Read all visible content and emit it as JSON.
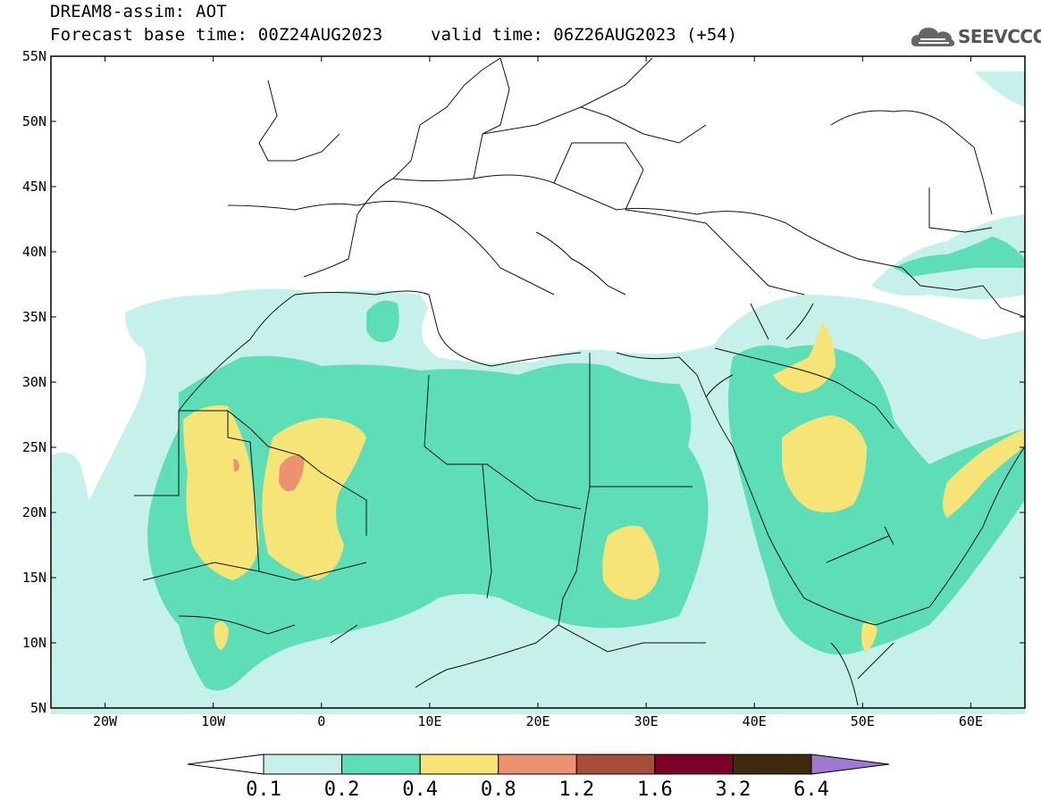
{
  "title": {
    "line1": "DREAM8-assim: AOT",
    "line2": "Forecast base time: 00Z24AUG2023",
    "valid": "valid time: 06Z26AUG2023 (+54)"
  },
  "logo": {
    "text": "SEEVCCC",
    "icon": "cloud-icon"
  },
  "map": {
    "lon_range": [
      -25,
      65
    ],
    "lat_range": [
      5,
      55
    ],
    "lat_ticks": [
      "55N",
      "50N",
      "45N",
      "40N",
      "35N",
      "30N",
      "25N",
      "20N",
      "15N",
      "10N",
      "5N"
    ],
    "lon_ticks": [
      "20W",
      "10W",
      "0",
      "10E",
      "20E",
      "30E",
      "40E",
      "50E",
      "60E"
    ]
  },
  "colorbar": {
    "labels": [
      "0.1",
      "0.2",
      "0.4",
      "0.8",
      "1.2",
      "1.6",
      "3.2",
      "6.4"
    ],
    "colors": [
      "#c6f1ea",
      "#5ddeb7",
      "#f7e477",
      "#ec9270",
      "#a84d3a",
      "#7a0027",
      "#3f2a10",
      "#a07ad0"
    ],
    "under_color": "#ffffff",
    "over_color": "#9e7bd1"
  },
  "legend_colors": {
    "0.1-0.2": "#c6f1ea",
    "0.2-0.4": "#5ddeb7",
    "0.4-0.8": "#f7e477",
    "0.8-1.2": "#ec9270"
  }
}
